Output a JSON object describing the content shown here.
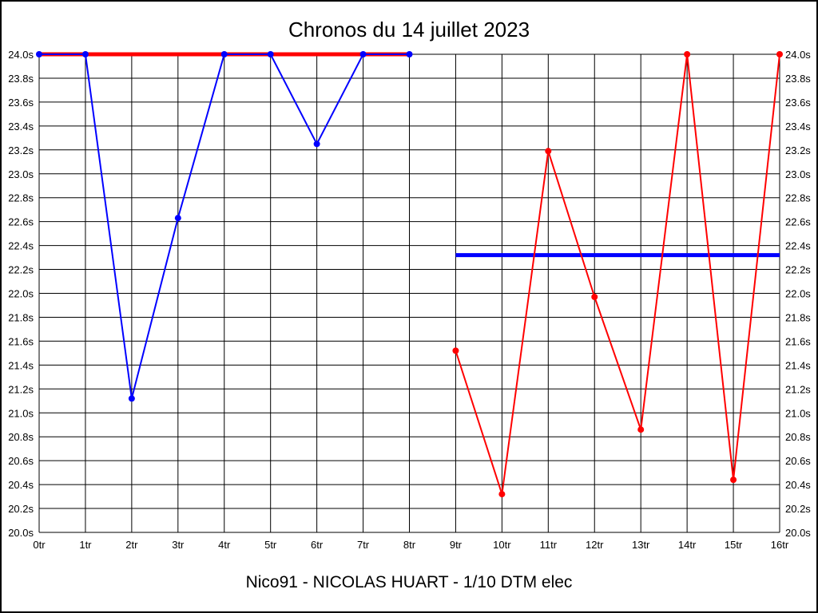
{
  "page": {
    "title": "Chronos du 14 juillet 2023",
    "footer": "Nico91 - NICOLAS HUART - 1/10 DTM elec"
  },
  "chart_data": {
    "type": "line",
    "title": "Chronos du 14 juillet 2023",
    "subtitle": "Nico91 - NICOLAS HUART - 1/10 DTM elec",
    "xlabel": "",
    "ylabel": "",
    "grid": true,
    "legend": "none",
    "categories": [
      "0tr",
      "1tr",
      "2tr",
      "3tr",
      "4tr",
      "5tr",
      "6tr",
      "7tr",
      "8tr",
      "9tr",
      "10tr",
      "11tr",
      "12tr",
      "13tr",
      "14tr",
      "15tr",
      "16tr"
    ],
    "ylim": [
      20.0,
      24.0
    ],
    "ytick_step": 0.2,
    "ytick_suffix": "s",
    "y_labels_both_sides": true,
    "colors": {
      "blue_series": "#0000ff",
      "red_series": "#ff0000",
      "grid": "#000000"
    },
    "series": [
      {
        "name": "blue_series",
        "color": "#0000ff",
        "marker": "dot",
        "points": [
          [
            0,
            24.0
          ],
          [
            1,
            24.0
          ],
          [
            2,
            21.12
          ],
          [
            3,
            22.63
          ],
          [
            4,
            24.0
          ],
          [
            5,
            24.0
          ],
          [
            6,
            23.25
          ],
          [
            7,
            24.0
          ],
          [
            8,
            24.0
          ]
        ]
      },
      {
        "name": "red_series",
        "color": "#ff0000",
        "marker": "dot",
        "points": [
          [
            9,
            21.52
          ],
          [
            10,
            20.32
          ],
          [
            11,
            23.19
          ],
          [
            12,
            21.97
          ],
          [
            13,
            20.86
          ],
          [
            14,
            24.0
          ],
          [
            15,
            20.44
          ],
          [
            16,
            24.0
          ]
        ]
      }
    ],
    "reference_lines": [
      {
        "name": "red_flat_line",
        "color": "#ff0000",
        "y": 24.0,
        "x_start": 0,
        "x_end": 8,
        "width": 5
      },
      {
        "name": "blue_flat_line",
        "color": "#0000ff",
        "y": 22.32,
        "x_start": 9,
        "x_end": 16,
        "width": 5
      }
    ]
  }
}
